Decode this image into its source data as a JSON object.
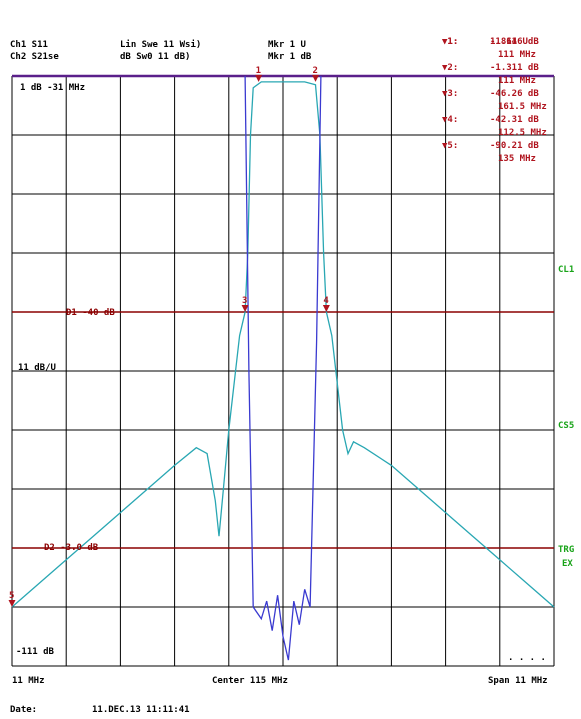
{
  "header": {
    "ch_left_1": "Ch1 S11",
    "ch_left_2": "Ch2 S21se",
    "ch_mid_1": "Lin Swe 11 Wsi)",
    "ch_mid_2": "dB Sw0 11 dB)",
    "ch_right_1": "Mkr 1 U",
    "ch_right_2": "Mkr 1 dB"
  },
  "marker_table": [
    {
      "label": "▼1:",
      "value": "1.814 U",
      "freq": ""
    },
    {
      "label": "▼1:",
      "value": "-1.616 dB",
      "freq": "111 MHz"
    },
    {
      "label": "▼2:",
      "value": "-1.311 dB",
      "freq": "111 MHz"
    },
    {
      "label": "▼3:",
      "value": "-46.26 dB",
      "freq": "161.5 MHz"
    },
    {
      "label": "▼4:",
      "value": "-42.31 dB",
      "freq": "112.5 MHz"
    },
    {
      "label": "▼5:",
      "value": "-90.21 dB",
      "freq": "135 MHz"
    }
  ],
  "plot_labels": {
    "ref_top": "1 dB -31 MHz",
    "scale": "11 dB/U",
    "ref_bottom": "-111 dB",
    "d1": "D1 -40 dB",
    "d2": "D2 -3.0 dB",
    "start": "11 MHz",
    "center": "Center 115 MHz",
    "stop": "Span 11 MHz",
    "date_label": "Date:",
    "date_value": "11.DEC.13 11:11:41",
    "right_tag_1": "CL1",
    "right_tag_2": "CS5",
    "right_tag_3": "TRG",
    "right_tag_4": "EX"
  },
  "colors": {
    "grid": "#000000",
    "display_line": "#8b0000",
    "trace_s21": "#29a7b3",
    "trace_s11": "#3a3ad0",
    "top_line": "#5a1f8a",
    "marker": "#b0141e",
    "tag_green": "#18a318"
  },
  "chart_data": {
    "type": "line",
    "x_range_mhz": [
      0,
      10
    ],
    "ylim_db": [
      -100,
      0
    ],
    "grid": true,
    "display_lines_db": [
      -40,
      -80
    ],
    "series": [
      {
        "name": "",
        "points": [
          [
            0.0,
            -90
          ],
          [
            0.5,
            -86
          ],
          [
            1.0,
            -82
          ],
          [
            1.5,
            -78
          ],
          [
            2.0,
            -74
          ],
          [
            2.5,
            -70
          ],
          [
            3.0,
            -66
          ],
          [
            3.4,
            -63
          ],
          [
            3.6,
            -64
          ],
          [
            3.75,
            -72
          ],
          [
            3.82,
            -78
          ],
          [
            3.9,
            -70
          ],
          [
            4.0,
            -60
          ],
          [
            4.1,
            -52
          ],
          [
            4.2,
            -44
          ],
          [
            4.3,
            -40
          ],
          [
            4.35,
            -30
          ],
          [
            4.4,
            -10
          ],
          [
            4.45,
            -2
          ],
          [
            4.6,
            -1
          ],
          [
            5.0,
            -1
          ],
          [
            5.4,
            -1
          ],
          [
            5.6,
            -1.5
          ],
          [
            5.68,
            -10
          ],
          [
            5.75,
            -30
          ],
          [
            5.8,
            -40
          ],
          [
            5.9,
            -44
          ],
          [
            6.0,
            -52
          ],
          [
            6.1,
            -60
          ],
          [
            6.2,
            -64
          ],
          [
            6.3,
            -62
          ],
          [
            6.5,
            -63
          ],
          [
            7.0,
            -66
          ],
          [
            7.5,
            -70
          ],
          [
            8.0,
            -74
          ],
          [
            8.5,
            -78
          ],
          [
            9.0,
            -82
          ],
          [
            9.5,
            -86
          ],
          [
            10.0,
            -90
          ]
        ]
      },
      {
        "name": "",
        "points": [
          [
            4.3,
            0
          ],
          [
            4.37,
            -50
          ],
          [
            4.45,
            -90
          ],
          [
            4.6,
            -92
          ],
          [
            4.7,
            -89
          ],
          [
            4.8,
            -94
          ],
          [
            4.9,
            -88
          ],
          [
            5.0,
            -95
          ],
          [
            5.1,
            -99
          ],
          [
            5.2,
            -89
          ],
          [
            5.3,
            -93
          ],
          [
            5.4,
            -87
          ],
          [
            5.5,
            -90
          ],
          [
            5.62,
            -45
          ],
          [
            5.7,
            0
          ]
        ]
      }
    ],
    "markers": [
      {
        "id": "1",
        "x": 4.55,
        "y": -1
      },
      {
        "id": "2",
        "x": 5.6,
        "y": -1
      },
      {
        "id": "3",
        "x": 4.3,
        "y": -40
      },
      {
        "id": "4",
        "x": 5.8,
        "y": -40
      },
      {
        "id": "5",
        "x": 0.0,
        "y": -90
      }
    ]
  }
}
